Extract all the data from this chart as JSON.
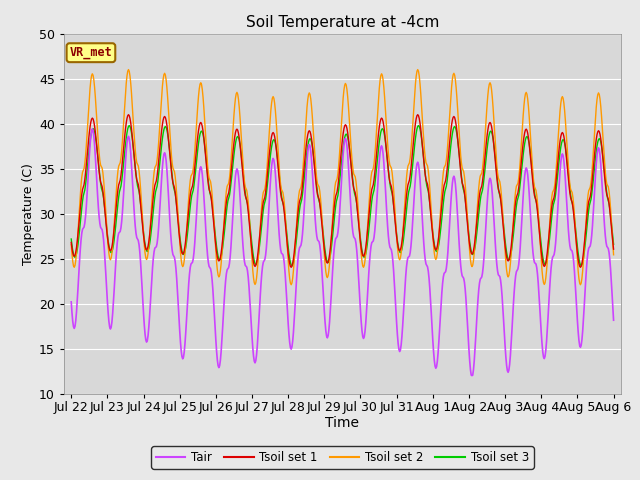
{
  "title": "Soil Temperature at -4cm",
  "xlabel": "Time",
  "ylabel": "Temperature (C)",
  "ylim": [
    10,
    50
  ],
  "background_color": "#e8e8e8",
  "plot_bg_color": "#d8d8d8",
  "legend_label": "VR_met",
  "colors": {
    "Tair": "#cc44ff",
    "Tsoil1": "#dd0000",
    "Tsoil2": "#ff9900",
    "Tsoil3": "#00cc00"
  },
  "legend_entries": [
    "Tair",
    "Tsoil set 1",
    "Tsoil set 2",
    "Tsoil set 3"
  ],
  "xtick_labels": [
    "Jul 22",
    "Jul 23",
    "Jul 24",
    "Jul 25",
    "Jul 26",
    "Jul 27",
    "Jul 28",
    "Jul 29",
    "Jul 30",
    "Jul 31",
    "Aug 1",
    "Aug 2",
    "Aug 3",
    "Aug 4",
    "Aug 5",
    "Aug 6"
  ],
  "ytick_labels": [
    10,
    15,
    20,
    25,
    30,
    35,
    40,
    45,
    50
  ]
}
